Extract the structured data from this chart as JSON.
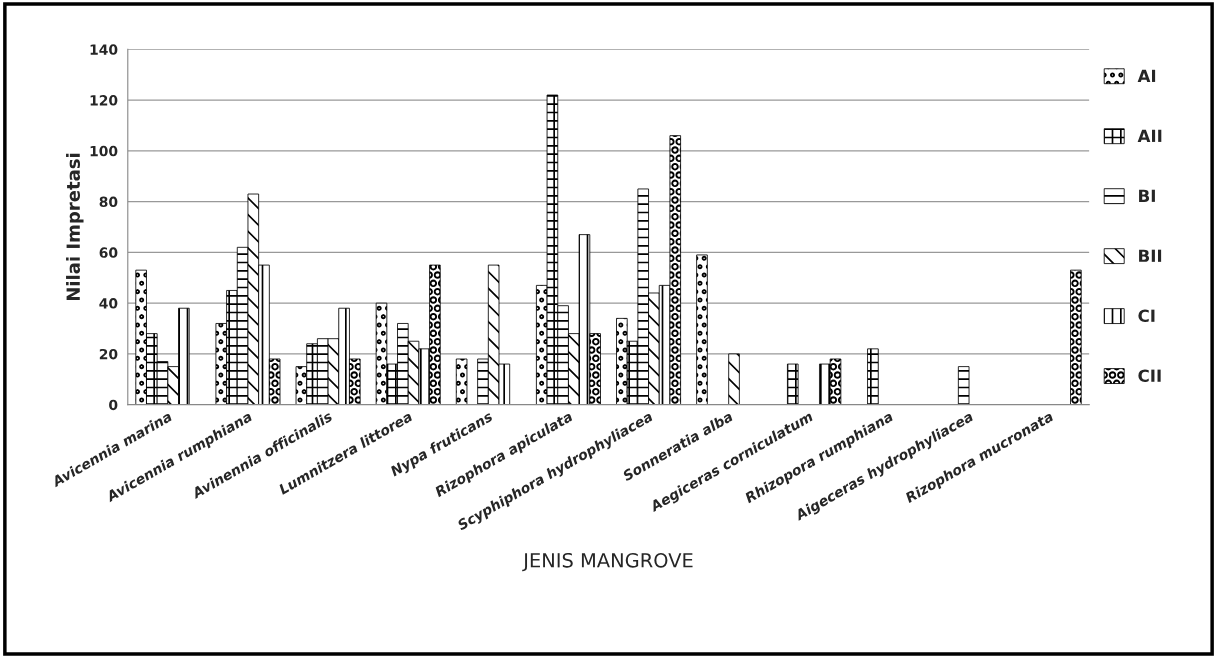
{
  "chart_data": {
    "type": "bar",
    "xlabel": "JENIS MANGROVE",
    "ylabel": "Nilai Impretasi",
    "categories": [
      "Avicennia marina",
      "Avicennia rumphiana",
      "Avinennia officinalis",
      "Lumnitzera littorea",
      "Nypa fruticans",
      "Rizophora apiculata",
      "Scyphiphora hydrophyliacea",
      "Sonneratia alba",
      "Aegiceras corniculatum",
      "Rhizopora rumphiana",
      "Aigeceras hydrophyliacea",
      "Rizophora mucronata"
    ],
    "series": [
      {
        "name": "AI",
        "color": "#000000",
        "values": [
          53,
          32,
          15,
          40,
          18,
          47,
          34,
          59,
          null,
          null,
          null,
          null
        ]
      },
      {
        "name": "AII",
        "color": "#000000",
        "values": [
          28,
          45,
          24,
          16,
          null,
          122,
          25,
          null,
          16,
          22,
          null,
          null
        ]
      },
      {
        "name": "BI",
        "color": "#000000",
        "values": [
          17,
          62,
          26,
          32,
          18,
          39,
          85,
          null,
          null,
          null,
          15,
          null
        ]
      },
      {
        "name": "BII",
        "color": "#000000",
        "values": [
          15,
          83,
          26,
          25,
          55,
          28,
          44,
          20,
          null,
          null,
          null,
          null
        ]
      },
      {
        "name": "CI",
        "color": "#000000",
        "values": [
          38,
          55,
          38,
          22,
          16,
          67,
          47,
          null,
          16,
          null,
          null,
          null
        ]
      },
      {
        "name": "CII",
        "color": "#000000",
        "values": [
          null,
          18,
          18,
          55,
          null,
          28,
          106,
          null,
          18,
          null,
          null,
          53
        ]
      }
    ],
    "ylim": [
      0,
      140
    ],
    "yticks": [
      0,
      20,
      40,
      60,
      80,
      100,
      120,
      140
    ],
    "grid": "y",
    "legend": "right"
  }
}
